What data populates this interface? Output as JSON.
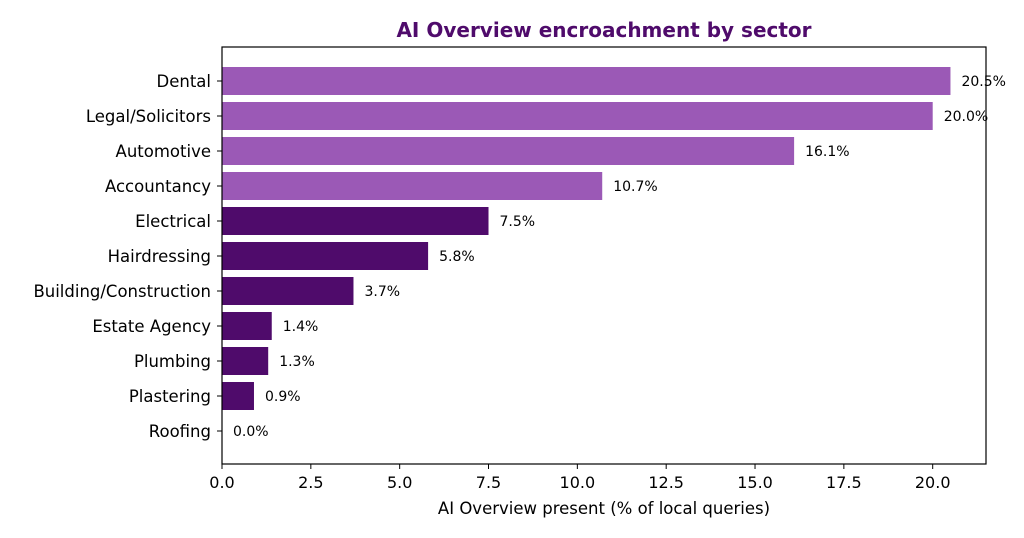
{
  "chart_data": {
    "type": "bar",
    "orientation": "horizontal",
    "title": "AI Overview encroachment by sector",
    "xlabel": "AI Overview present (% of local queries)",
    "ylabel": "",
    "xlim": [
      0,
      21.5
    ],
    "xticks": [
      0,
      2.5,
      5,
      7.5,
      10,
      12.5,
      15,
      17.5,
      20
    ],
    "xtick_labels": [
      "0.0",
      "2.5",
      "5.0",
      "7.5",
      "10.0",
      "12.5",
      "15.0",
      "17.5",
      "20.0"
    ],
    "grid": false,
    "categories": [
      "Dental",
      "Legal/Solicitors",
      "Automotive",
      "Accountancy",
      "Electrical",
      "Hairdressing",
      "Building/Construction",
      "Estate Agency",
      "Plumbing",
      "Plastering",
      "Roofing"
    ],
    "values": [
      20.5,
      20.0,
      16.1,
      10.7,
      7.5,
      5.8,
      3.7,
      1.4,
      1.3,
      0.9,
      0.0
    ],
    "value_labels": [
      "20.5%",
      "20.0%",
      "16.1%",
      "10.7%",
      "7.5%",
      "5.8%",
      "3.7%",
      "1.4%",
      "1.3%",
      "0.9%",
      "0.0%"
    ],
    "bar_colors": [
      "#9b59b6",
      "#9b59b6",
      "#9b59b6",
      "#9b59b6",
      "#4f0b6b",
      "#4f0b6b",
      "#4f0b6b",
      "#4f0b6b",
      "#4f0b6b",
      "#4f0b6b",
      "#4f0b6b"
    ],
    "title_color": "#4f0b6b"
  }
}
